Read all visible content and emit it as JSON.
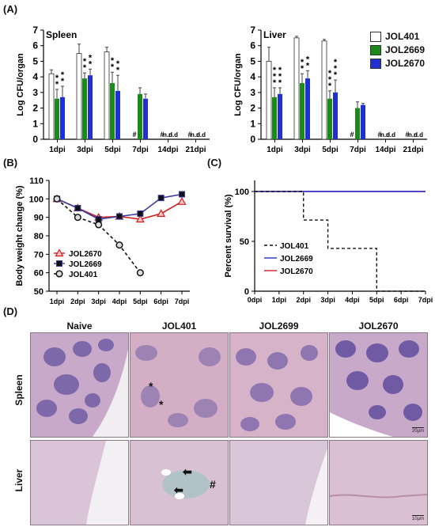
{
  "panels": {
    "A": "(A)",
    "B": "(B)",
    "C": "(C)",
    "D": "(D)"
  },
  "legend_a": [
    "JOL401",
    "JOL2669",
    "JOL2670"
  ],
  "colors": {
    "JOL401": "#ffffff",
    "JOL2669": "#1b8a1b",
    "JOL2670": "#1f2fd0",
    "survival_JOL2670": "#d11f1f"
  },
  "chart_data": [
    {
      "type": "bar",
      "title": "Spleen",
      "ylabel": "Log CFU/organ",
      "ylim": [
        0,
        7
      ],
      "yticks": [
        0,
        1,
        2,
        3,
        4,
        5,
        6,
        7
      ],
      "categories": [
        "1dpi",
        "3dpi",
        "5dpi",
        "7dpi",
        "14dpi",
        "21dpi"
      ],
      "series": [
        {
          "name": "JOL401",
          "values": [
            4.2,
            5.5,
            5.6,
            null,
            null,
            null
          ],
          "errors": [
            0.25,
            0.6,
            0.3,
            null,
            null,
            null
          ]
        },
        {
          "name": "JOL2669",
          "values": [
            2.6,
            3.9,
            3.6,
            2.9,
            null,
            null
          ],
          "errors": [
            0.6,
            0.35,
            0.7,
            0.4,
            null,
            null
          ]
        },
        {
          "name": "JOL2670",
          "values": [
            2.7,
            4.1,
            3.1,
            2.6,
            null,
            null
          ],
          "errors": [
            0.7,
            0.4,
            1.0,
            0.3,
            null,
            null
          ]
        }
      ],
      "significance": [
        [
          "",
          "**",
          "**"
        ],
        [
          "",
          "**",
          "**"
        ],
        [
          "",
          "**",
          "**"
        ],
        [
          "#",
          "",
          ""
        ],
        [
          "#",
          "n.d",
          "n.d"
        ],
        [
          "#",
          "n.d",
          "n.d"
        ]
      ]
    },
    {
      "type": "bar",
      "title": "Liver",
      "ylabel": "Log CFU/organ",
      "ylim": [
        0,
        7
      ],
      "yticks": [
        0,
        1,
        2,
        3,
        4,
        5,
        6,
        7
      ],
      "categories": [
        "1dpi",
        "3dpi",
        "5dpi",
        "7dpi",
        "14dpi",
        "21dpi"
      ],
      "series": [
        {
          "name": "JOL401",
          "values": [
            5.0,
            6.5,
            6.3,
            null,
            null,
            null
          ],
          "errors": [
            0.9,
            0.1,
            0.1,
            null,
            null,
            null
          ]
        },
        {
          "name": "JOL2669",
          "values": [
            2.7,
            3.6,
            2.6,
            2.0,
            null,
            null
          ],
          "errors": [
            0.6,
            0.6,
            0.5,
            0.4,
            null,
            null
          ]
        },
        {
          "name": "JOL2670",
          "values": [
            2.9,
            3.9,
            3.0,
            2.2,
            null,
            null
          ],
          "errors": [
            0.4,
            0.5,
            0.8,
            0.1,
            null,
            null
          ]
        }
      ],
      "significance": [
        [
          "",
          "***",
          "***"
        ],
        [
          "",
          "**",
          "**"
        ],
        [
          "",
          "***",
          "***"
        ],
        [
          "#",
          "",
          ""
        ],
        [
          "#",
          "n.d",
          "n.d"
        ],
        [
          "#",
          "n.d",
          "n.d"
        ]
      ]
    },
    {
      "type": "line",
      "ylabel": "Body weight change (%)",
      "ylim": [
        50,
        110
      ],
      "yticks": [
        50,
        60,
        70,
        80,
        90,
        100,
        110
      ],
      "x": [
        "1dpi",
        "2dpi",
        "3dpi",
        "4dpi",
        "5dpi",
        "6dpi",
        "7dpi"
      ],
      "legend": "bottom-left",
      "series": [
        {
          "name": "JOL2670",
          "values": [
            100,
            95,
            90,
            90.5,
            89,
            92,
            98.5
          ]
        },
        {
          "name": "JOL2669",
          "values": [
            100,
            95,
            89,
            90.5,
            92,
            100.5,
            102.5
          ]
        },
        {
          "name": "JOL401",
          "values": [
            100,
            90,
            86,
            75,
            60,
            null,
            null
          ]
        }
      ]
    },
    {
      "type": "line",
      "ylabel": "Percent survival (%)",
      "ylim": [
        0,
        100
      ],
      "yticks": [
        0,
        50,
        100
      ],
      "x": [
        "0dpi",
        "1dpi",
        "2dpi",
        "3dpi",
        "4dpi",
        "5dpi",
        "6dpi",
        "7dpi"
      ],
      "legend": "bottom-left",
      "series": [
        {
          "name": "JOL401",
          "values": [
            100,
            100,
            71.4,
            42.9,
            42.9,
            0,
            0,
            0
          ]
        },
        {
          "name": "JOL2669",
          "values": [
            100,
            100,
            100,
            100,
            100,
            100,
            100,
            100
          ]
        },
        {
          "name": "JOL2670",
          "values": [
            100,
            100,
            100,
            100,
            100,
            100,
            100,
            100
          ]
        }
      ]
    }
  ],
  "histology": {
    "columns": [
      "Naive",
      "JOL401",
      "JOL2699",
      "JOL2670"
    ],
    "rows": [
      "Spleen",
      "Liver"
    ],
    "scale_spleen": "20µm",
    "scale_liver": "10µm",
    "markers": {
      "star": "*",
      "hash": "#"
    }
  }
}
